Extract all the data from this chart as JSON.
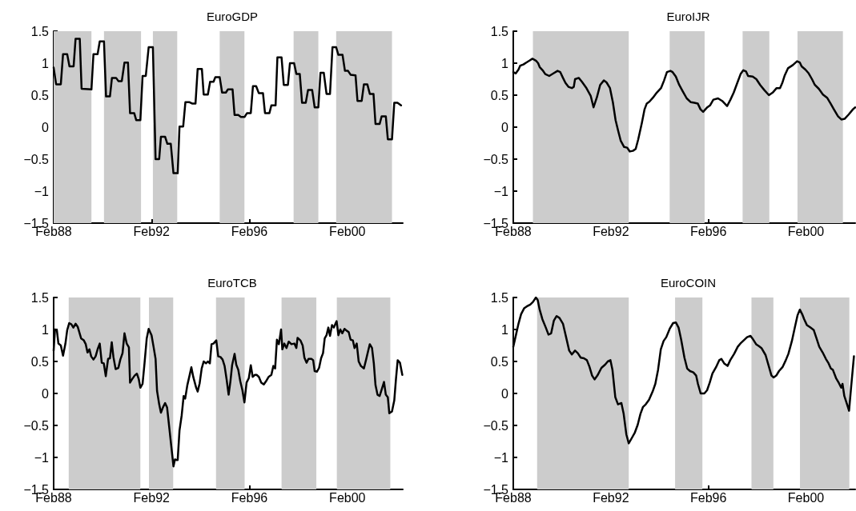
{
  "chart_data": [
    {
      "type": "line",
      "title": "EuroGDP",
      "color": "#000000",
      "grid": false,
      "marker": "none",
      "line_style": "solid",
      "x": [
        "1988-02-01",
        "1988-03-09",
        "1988-05-18",
        "1988-06-20",
        "1988-08-21",
        "1988-09-24",
        "1988-11-25",
        "1988-12-24",
        "1989-02-25",
        "1989-03-24",
        "1989-08-18",
        "1989-09-17",
        "1989-11-18",
        "1989-12-20",
        "1990-02-21",
        "1990-03-24",
        "1990-05-21",
        "1990-06-20",
        "1990-08-21",
        "1990-09-24",
        "1990-11-14",
        "1990-12-24",
        "1991-02-14",
        "1991-03-17",
        "1991-05-18",
        "1991-06-17",
        "1991-08-18",
        "1991-09-20",
        "1991-11-07",
        "1991-12-20",
        "1992-02-21",
        "1992-04-01",
        "1992-05-25",
        "1992-06-20",
        "1992-08-21",
        "1992-09-24",
        "1992-11-14",
        "1992-12-24",
        "1993-02-25",
        "1993-03-24",
        "1993-05-18",
        "1993-06-20",
        "1993-08-21",
        "1993-09-27",
        "1993-11-18",
        "1993-12-20",
        "1994-02-21",
        "1994-03-20",
        "1994-05-21",
        "1994-06-24",
        "1994-08-14",
        "1994-09-09",
        "1994-11-14",
        "1994-12-20",
        "1995-02-14",
        "1995-03-17",
        "1995-05-25",
        "1995-06-24",
        "1995-08-18",
        "1995-09-27",
        "1995-11-21",
        "1995-12-27",
        "1996-02-21",
        "1996-03-24",
        "1996-05-11",
        "1996-06-20",
        "1996-08-21",
        "1996-09-20",
        "1996-11-25",
        "1996-12-24",
        "1997-02-25",
        "1997-03-24",
        "1997-05-25",
        "1997-06-27",
        "1997-08-28",
        "1997-09-27",
        "1997-11-28",
        "1998-01-01",
        "1998-02-21",
        "1998-03-27",
        "1998-05-21",
        "1998-06-24",
        "1998-08-25",
        "1998-10-01",
        "1998-11-25",
        "1998-12-27",
        "1999-02-14",
        "1999-03-27",
        "1999-05-18",
        "1999-06-24",
        "1999-08-18",
        "1999-09-20",
        "1999-11-21",
        "1999-12-27",
        "2000-02-11",
        "2000-03-20",
        "2000-06-02",
        "2000-07-01",
        "2000-09-02",
        "2000-10-05",
        "2000-11-25",
        "2001-01-01",
        "2001-02-25",
        "2001-03-27",
        "2001-05-28",
        "2001-06-27",
        "2001-08-28",
        "2001-09-27",
        "2001-11-28",
        "2002-01-01",
        "2002-02-18",
        "2002-04-12"
      ],
      "values": [
        0.93,
        0.67,
        0.67,
        1.14,
        1.14,
        0.95,
        0.95,
        1.38,
        1.38,
        0.6,
        0.59,
        1.14,
        1.14,
        1.34,
        1.34,
        0.48,
        0.48,
        0.77,
        0.77,
        0.72,
        0.72,
        1.01,
        1.01,
        0.22,
        0.22,
        0.11,
        0.11,
        0.8,
        0.8,
        1.25,
        1.25,
        -0.5,
        -0.5,
        -0.15,
        -0.15,
        -0.26,
        -0.26,
        -0.72,
        -0.72,
        0.01,
        0.01,
        0.39,
        0.39,
        0.37,
        0.37,
        0.91,
        0.91,
        0.51,
        0.51,
        0.71,
        0.71,
        0.78,
        0.78,
        0.54,
        0.54,
        0.59,
        0.59,
        0.19,
        0.19,
        0.16,
        0.16,
        0.22,
        0.22,
        0.64,
        0.64,
        0.53,
        0.53,
        0.22,
        0.22,
        0.34,
        0.34,
        1.09,
        1.09,
        0.66,
        0.66,
        1.0,
        1.0,
        0.83,
        0.83,
        0.38,
        0.38,
        0.58,
        0.58,
        0.31,
        0.31,
        0.85,
        0.85,
        0.52,
        0.52,
        1.25,
        1.25,
        1.13,
        1.13,
        0.88,
        0.88,
        0.82,
        0.81,
        0.41,
        0.41,
        0.67,
        0.67,
        0.52,
        0.52,
        0.05,
        0.05,
        0.17,
        0.17,
        -0.19,
        -0.19,
        0.38,
        0.38,
        0.34
      ],
      "xlim": [
        "1988-02-01",
        "2002-05-08"
      ],
      "xticks": [
        {
          "value": "1988-02",
          "label": "Feb88"
        },
        {
          "value": "1992-02",
          "label": "Feb92"
        },
        {
          "value": "1996-02",
          "label": "Feb96"
        },
        {
          "value": "2000-02",
          "label": "Feb00"
        }
      ],
      "ylim": [
        -1.5,
        1.5
      ],
      "yticks": [
        {
          "value": -1.5,
          "label": "−1.5"
        },
        {
          "value": -1,
          "label": "−1"
        },
        {
          "value": -0.5,
          "label": "−0.5"
        },
        0,
        0.5,
        1,
        1.5
      ],
      "bands": [
        {
          "axis": "x",
          "from": "1988-02-01",
          "to": "1989-08-18",
          "color": "#cccccc"
        },
        {
          "axis": "x",
          "from": "1990-02-21",
          "to": "1991-08-28",
          "color": "#cccccc"
        },
        {
          "axis": "x",
          "from": "1992-02-21",
          "to": "1993-02-18",
          "color": "#cccccc"
        },
        {
          "axis": "x",
          "from": "1994-11-14",
          "to": "1995-11-18",
          "color": "#cccccc"
        },
        {
          "axis": "x",
          "from": "1997-11-21",
          "to": "1998-11-25",
          "color": "#cccccc"
        },
        {
          "axis": "x",
          "from": "1999-08-18",
          "to": "2001-11-28",
          "color": "#cccccc"
        }
      ]
    },
    {
      "type": "line",
      "title": "EuroIJR",
      "color": "#000000",
      "grid": false,
      "marker": "none",
      "line_style": "solid",
      "x": [
        "1988-02-01",
        "1988-03-09",
        "1988-04-19",
        "1988-05-14",
        "1988-07-01",
        "1988-08-14",
        "1988-10-01",
        "1988-11-14",
        "1989-01-05",
        "1989-02-07",
        "1989-03-02",
        "1989-04-15",
        "1989-05-25",
        "1989-07-23",
        "1989-09-24",
        "1989-11-25",
        "1990-01-05",
        "1990-02-14",
        "1990-03-24",
        "1990-05-07",
        "1990-06-27",
        "1990-07-26",
        "1990-08-14",
        "1990-10-08",
        "1990-11-25",
        "1991-01-26",
        "1991-04-05",
        "1991-05-18",
        "1991-07-08",
        "1991-08-25",
        "1991-10-19",
        "1991-11-28",
        "1992-01-19",
        "1992-03-02",
        "1992-04-12",
        "1992-05-21",
        "1992-06-27",
        "1992-08-18",
        "1992-10-01",
        "1992-11-11",
        "1992-12-27",
        "1993-02-07",
        "1993-03-17",
        "1993-05-11",
        "1993-06-20",
        "1993-07-23",
        "1993-09-02",
        "1993-10-23",
        "1993-12-20",
        "1994-02-21",
        "1994-04-08",
        "1994-05-21",
        "1994-07-12",
        "1994-08-14",
        "1994-10-01",
        "1994-11-21",
        "1995-01-12",
        "1995-03-13",
        "1995-05-14",
        "1995-07-05",
        "1995-08-25",
        "1995-10-05",
        "1995-11-14",
        "1996-01-15",
        "1996-02-25",
        "1996-04-15",
        "1996-06-24",
        "1996-08-25",
        "1996-11-07",
        "1996-12-27",
        "1997-02-14",
        "1997-04-08",
        "1997-05-28",
        "1997-07-08",
        "1997-08-18",
        "1997-09-17",
        "1997-11-25",
        "1998-01-19",
        "1998-03-17",
        "1998-05-18",
        "1998-07-26",
        "1998-09-20",
        "1998-11-18",
        "1999-01-08",
        "1999-02-11",
        "1999-03-20",
        "1999-05-07",
        "1999-07-19",
        "1999-09-20",
        "1999-11-01",
        "1999-11-28",
        "2000-01-23",
        "2000-03-13",
        "2000-05-01",
        "2000-06-13",
        "2000-08-11",
        "2000-10-12",
        "2000-12-13",
        "2001-02-03",
        "2001-03-24",
        "2001-05-25",
        "2001-07-15",
        "2001-09-02",
        "2001-11-03",
        "2002-01-05",
        "2002-02-07"
      ],
      "values": [
        0.86,
        0.84,
        0.9,
        0.96,
        0.98,
        1.01,
        1.04,
        1.07,
        1.04,
        1.0,
        0.94,
        0.89,
        0.83,
        0.8,
        0.84,
        0.88,
        0.86,
        0.77,
        0.69,
        0.63,
        0.61,
        0.63,
        0.75,
        0.77,
        0.71,
        0.62,
        0.49,
        0.31,
        0.47,
        0.66,
        0.73,
        0.7,
        0.61,
        0.39,
        0.11,
        -0.06,
        -0.21,
        -0.31,
        -0.32,
        -0.38,
        -0.37,
        -0.34,
        -0.19,
        0.07,
        0.28,
        0.37,
        0.4,
        0.46,
        0.54,
        0.61,
        0.73,
        0.86,
        0.88,
        0.86,
        0.79,
        0.66,
        0.56,
        0.45,
        0.39,
        0.38,
        0.37,
        0.28,
        0.24,
        0.31,
        0.34,
        0.43,
        0.45,
        0.41,
        0.33,
        0.43,
        0.54,
        0.69,
        0.83,
        0.89,
        0.87,
        0.8,
        0.79,
        0.75,
        0.66,
        0.58,
        0.5,
        0.54,
        0.61,
        0.61,
        0.69,
        0.81,
        0.92,
        0.97,
        1.03,
        1.01,
        0.95,
        0.9,
        0.84,
        0.75,
        0.66,
        0.6,
        0.51,
        0.46,
        0.37,
        0.28,
        0.17,
        0.12,
        0.13,
        0.2,
        0.28,
        0.31
      ],
      "xlim": [
        "1988-02-01",
        "2002-02-07"
      ],
      "xticks": [
        {
          "value": "1988-02",
          "label": "Feb88"
        },
        {
          "value": "1992-02",
          "label": "Feb92"
        },
        {
          "value": "1996-02",
          "label": "Feb96"
        },
        {
          "value": "2000-02",
          "label": "Feb00"
        }
      ],
      "ylim": [
        -1.5,
        1.5
      ],
      "yticks": [
        {
          "value": -1.5,
          "label": "−1.5"
        },
        {
          "value": -1,
          "label": "−1"
        },
        {
          "value": -0.5,
          "label": "−0.5"
        },
        0,
        0.5,
        1,
        1.5
      ],
      "bands": [
        {
          "axis": "x",
          "from": "1988-11-21",
          "to": "1992-10-26",
          "color": "#cccccc"
        },
        {
          "axis": "x",
          "from": "1994-07-01",
          "to": "1995-12-06",
          "color": "#cccccc"
        },
        {
          "axis": "x",
          "from": "1997-06-27",
          "to": "1998-08-01",
          "color": "#cccccc"
        },
        {
          "axis": "x",
          "from": "1999-09-27",
          "to": "2001-08-07",
          "color": "#cccccc"
        }
      ]
    },
    {
      "type": "line",
      "title": "EuroTCB",
      "color": "#000000",
      "grid": false,
      "marker": "none",
      "line_style": "solid",
      "x": [
        "1988-02-01",
        "1988-02-21",
        "1988-03-20",
        "1988-04-12",
        "1988-05-18",
        "1988-06-20",
        "1988-07-26",
        "1988-08-21",
        "1988-09-20",
        "1988-10-23",
        "1988-11-21",
        "1988-12-24",
        "1989-01-26",
        "1989-03-17",
        "1989-04-26",
        "1989-05-25",
        "1989-06-20",
        "1989-07-19",
        "1989-08-14",
        "1989-09-17",
        "1989-10-19",
        "1989-11-18",
        "1989-12-20",
        "1990-01-19",
        "1990-02-18",
        "1990-03-20",
        "1990-04-23",
        "1990-05-21",
        "1990-06-17",
        "1990-07-12",
        "1990-08-14",
        "1990-09-24",
        "1990-10-23",
        "1990-11-25",
        "1990-12-24",
        "1991-01-26",
        "1991-02-28",
        "1991-03-17",
        "1991-04-15",
        "1991-05-25",
        "1991-06-27",
        "1991-07-26",
        "1991-08-18",
        "1991-09-20",
        "1991-10-19",
        "1991-11-21",
        "1991-12-20",
        "1992-02-01",
        "1992-03-02",
        "1992-04-01",
        "1992-04-23",
        "1992-05-25",
        "1992-06-20",
        "1992-07-19",
        "1992-08-21",
        "1992-09-20",
        "1992-10-23",
        "1992-11-21",
        "1992-12-24",
        "1993-01-15",
        "1993-02-03",
        "1993-02-25",
        "1993-03-24",
        "1993-04-26",
        "1993-05-25",
        "1993-06-17",
        "1993-07-19",
        "1993-08-21",
        "1993-09-17",
        "1993-10-15",
        "1993-11-28",
        "1993-12-20",
        "1994-01-19",
        "1994-02-18",
        "1994-03-20",
        "1994-04-23",
        "1994-05-21",
        "1994-06-20",
        "1994-07-15",
        "1994-08-14",
        "1994-09-24",
        "1994-10-23",
        "1994-11-25",
        "1994-12-27",
        "1995-01-26",
        "1995-02-25",
        "1995-03-27",
        "1995-04-23",
        "1995-05-18",
        "1995-06-24",
        "1995-07-19",
        "1995-08-18",
        "1995-09-17",
        "1995-10-19",
        "1995-11-18",
        "1995-12-20",
        "1996-01-23",
        "1996-02-21",
        "1996-03-20",
        "1996-04-23",
        "1996-05-18",
        "1996-06-20",
        "1996-07-26",
        "1996-09-02",
        "1996-10-05",
        "1996-11-14",
        "1996-12-24",
        "1997-01-23",
        "1997-02-18",
        "1997-03-17",
        "1997-04-15",
        "1997-05-18",
        "1997-06-06",
        "1997-07-05",
        "1997-08-07",
        "1997-09-09",
        "1997-10-19",
        "1997-12-02",
        "1998-01-01",
        "1998-01-19",
        "1998-03-02",
        "1998-04-05",
        "1998-05-01",
        "1998-06-02",
        "1998-07-01",
        "1998-08-14",
        "1998-09-09",
        "1998-10-01",
        "1998-11-03",
        "1998-12-06",
        "1999-01-05",
        "1999-02-03",
        "1999-02-28",
        "1999-03-27",
        "1999-04-23",
        "1999-05-18",
        "1999-06-17",
        "1999-07-15",
        "1999-08-11",
        "1999-08-25",
        "1999-09-20",
        "1999-10-19",
        "1999-11-18",
        "1999-12-20",
        "2000-01-23",
        "2000-02-21",
        "2000-03-20",
        "2000-04-23",
        "2000-05-18",
        "2000-06-20",
        "2000-07-19",
        "2000-08-21",
        "2000-10-05",
        "2000-11-07",
        "2000-12-06",
        "2001-01-01",
        "2001-02-03",
        "2001-03-02",
        "2001-03-27",
        "2001-04-26",
        "2001-05-28",
        "2001-06-27",
        "2001-08-01",
        "2001-08-28",
        "2001-09-27",
        "2001-10-19",
        "2001-11-28",
        "2002-01-01",
        "2002-01-26",
        "2002-02-21",
        "2002-03-27",
        "2002-05-01"
      ],
      "values": [
        0.67,
        1.0,
        0.99,
        0.78,
        0.75,
        0.59,
        0.78,
        0.99,
        1.1,
        1.08,
        1.03,
        1.09,
        1.04,
        0.86,
        0.83,
        0.77,
        0.64,
        0.69,
        0.58,
        0.53,
        0.58,
        0.69,
        0.78,
        0.48,
        0.47,
        0.27,
        0.54,
        0.55,
        0.8,
        0.57,
        0.38,
        0.4,
        0.53,
        0.63,
        0.94,
        0.78,
        0.72,
        0.17,
        0.22,
        0.28,
        0.31,
        0.22,
        0.09,
        0.15,
        0.47,
        0.86,
        1.01,
        0.91,
        0.73,
        0.54,
        0.04,
        -0.17,
        -0.3,
        -0.22,
        -0.15,
        -0.22,
        -0.54,
        -0.82,
        -1.14,
        -1.03,
        -1.04,
        -1.04,
        -0.58,
        -0.34,
        -0.04,
        -0.08,
        0.13,
        0.28,
        0.41,
        0.26,
        0.09,
        0.03,
        0.16,
        0.39,
        0.5,
        0.47,
        0.5,
        0.47,
        0.77,
        0.78,
        0.83,
        0.58,
        0.57,
        0.53,
        0.43,
        0.22,
        -0.02,
        0.19,
        0.44,
        0.62,
        0.45,
        0.37,
        0.19,
        0.05,
        -0.14,
        0.17,
        0.24,
        0.44,
        0.26,
        0.29,
        0.29,
        0.26,
        0.17,
        0.14,
        0.19,
        0.26,
        0.29,
        0.43,
        0.39,
        0.84,
        0.77,
        1.0,
        0.69,
        0.78,
        0.71,
        0.81,
        0.77,
        0.78,
        0.71,
        0.87,
        0.83,
        0.75,
        0.56,
        0.48,
        0.54,
        0.54,
        0.52,
        0.35,
        0.34,
        0.4,
        0.55,
        0.63,
        0.86,
        0.91,
        1.03,
        0.9,
        1.07,
        1.03,
        1.1,
        1.13,
        0.91,
        1.0,
        0.94,
        1.01,
        0.98,
        0.96,
        0.84,
        0.83,
        0.71,
        0.78,
        0.5,
        0.43,
        0.39,
        0.53,
        0.66,
        0.77,
        0.71,
        0.47,
        0.13,
        -0.02,
        -0.04,
        0.06,
        0.18,
        -0.02,
        -0.06,
        -0.31,
        -0.28,
        -0.11,
        0.22,
        0.52,
        0.48,
        0.29
      ],
      "xlim": [
        "1988-02-01",
        "2002-05-08"
      ],
      "xticks": [
        {
          "value": "1988-02",
          "label": "Feb88"
        },
        {
          "value": "1992-02",
          "label": "Feb92"
        },
        {
          "value": "1996-02",
          "label": "Feb96"
        },
        {
          "value": "2000-02",
          "label": "Feb00"
        }
      ],
      "ylim": [
        -1.5,
        1.5
      ],
      "yticks": [
        {
          "value": -1.5,
          "label": "−1.5"
        },
        {
          "value": -1,
          "label": "−1"
        },
        {
          "value": -0.5,
          "label": "−0.5"
        },
        0,
        0.5,
        1,
        1.5
      ],
      "bands": [
        {
          "axis": "x",
          "from": "1988-09-13",
          "to": "1991-08-18",
          "color": "#cccccc"
        },
        {
          "axis": "x",
          "from": "1991-12-24",
          "to": "1992-12-20",
          "color": "#cccccc"
        },
        {
          "axis": "x",
          "from": "1994-09-20",
          "to": "1995-11-21",
          "color": "#cccccc"
        },
        {
          "axis": "x",
          "from": "1997-05-25",
          "to": "1998-10-26",
          "color": "#cccccc"
        },
        {
          "axis": "x",
          "from": "1999-08-28",
          "to": "2001-11-03",
          "color": "#cccccc"
        }
      ]
    },
    {
      "type": "line",
      "title": "EuroCOIN",
      "color": "#000000",
      "grid": false,
      "marker": "none",
      "line_style": "solid",
      "x": [
        "1988-02-01",
        "1988-03-09",
        "1988-04-19",
        "1988-05-28",
        "1988-07-12",
        "1988-08-21",
        "1988-10-12",
        "1988-11-21",
        "1989-01-05",
        "1989-02-01",
        "1989-03-02",
        "1989-04-12",
        "1989-06-02",
        "1989-07-12",
        "1989-08-21",
        "1989-10-01",
        "1989-11-11",
        "1989-12-24",
        "1990-02-14",
        "1990-03-24",
        "1990-05-18",
        "1990-06-27",
        "1990-08-14",
        "1990-09-24",
        "1990-11-07",
        "1990-12-24",
        "1991-02-07",
        "1991-03-17",
        "1991-04-26",
        "1991-06-02",
        "1991-07-15",
        "1991-09-13",
        "1991-11-07",
        "1991-12-17",
        "1992-01-26",
        "1992-02-25",
        "1992-04-08",
        "1992-05-18",
        "1992-07-08",
        "1992-08-11",
        "1992-09-20",
        "1992-10-26",
        "1992-12-09",
        "1993-01-26",
        "1993-03-09",
        "1993-04-19",
        "1993-05-28",
        "1993-07-08",
        "1993-08-25",
        "1993-10-19",
        "1993-11-28",
        "1994-01-08",
        "1994-02-18",
        "1994-04-01",
        "1994-05-11",
        "1994-07-01",
        "1994-08-21",
        "1994-10-01",
        "1994-11-11",
        "1994-12-20",
        "1995-02-07",
        "1995-03-20",
        "1995-05-01",
        "1995-06-20",
        "1995-08-01",
        "1995-08-28",
        "1995-10-08",
        "1995-12-02",
        "1996-01-12",
        "1996-02-21",
        "1996-04-01",
        "1996-05-25",
        "1996-07-12",
        "1996-08-14",
        "1996-09-24",
        "1996-11-14",
        "1996-12-24",
        "1997-02-21",
        "1997-04-15",
        "1997-06-02",
        "1997-07-23",
        "1997-09-02",
        "1997-10-23",
        "1997-11-21",
        "1998-01-15",
        "1998-02-25",
        "1998-04-05",
        "1998-06-06",
        "1998-07-23",
        "1998-09-02",
        "1998-10-05",
        "1998-11-14",
        "1998-12-24",
        "1999-02-14",
        "1999-04-05",
        "1999-05-14",
        "1999-07-05",
        "1999-08-18",
        "1999-09-27",
        "1999-11-01",
        "1999-12-06",
        "2000-01-05",
        "2000-02-14",
        "2000-04-08",
        "2000-05-28",
        "2000-07-08",
        "2000-08-18",
        "2000-10-08",
        "2000-11-25",
        "2001-01-05",
        "2001-02-07",
        "2001-03-09",
        "2001-04-26",
        "2001-06-09",
        "2001-07-12",
        "2001-08-01",
        "2001-08-28",
        "2001-10-08",
        "2001-11-07",
        "2001-12-09",
        "2002-01-19"
      ],
      "values": [
        0.73,
        0.9,
        1.09,
        1.24,
        1.33,
        1.36,
        1.39,
        1.43,
        1.5,
        1.46,
        1.31,
        1.16,
        1.03,
        0.92,
        0.94,
        1.14,
        1.21,
        1.18,
        1.09,
        0.92,
        0.67,
        0.61,
        0.67,
        0.63,
        0.56,
        0.55,
        0.52,
        0.42,
        0.28,
        0.22,
        0.28,
        0.4,
        0.45,
        0.5,
        0.52,
        0.37,
        -0.06,
        -0.17,
        -0.15,
        -0.32,
        -0.64,
        -0.78,
        -0.7,
        -0.61,
        -0.49,
        -0.32,
        -0.21,
        -0.17,
        -0.1,
        0.03,
        0.15,
        0.37,
        0.69,
        0.82,
        0.88,
        1.01,
        1.1,
        1.11,
        1.03,
        0.84,
        0.56,
        0.39,
        0.35,
        0.33,
        0.28,
        0.15,
        0.0,
        0.0,
        0.05,
        0.17,
        0.31,
        0.41,
        0.52,
        0.54,
        0.47,
        0.43,
        0.52,
        0.62,
        0.73,
        0.79,
        0.84,
        0.88,
        0.9,
        0.86,
        0.77,
        0.74,
        0.71,
        0.6,
        0.43,
        0.28,
        0.25,
        0.28,
        0.35,
        0.41,
        0.52,
        0.62,
        0.82,
        1.03,
        1.22,
        1.31,
        1.24,
        1.16,
        1.07,
        1.03,
        0.99,
        0.86,
        0.73,
        0.64,
        0.54,
        0.47,
        0.39,
        0.37,
        0.24,
        0.16,
        0.09,
        0.15,
        -0.04,
        -0.17,
        -0.27,
        0.11,
        0.58
      ],
      "xlim": [
        "1988-02-01",
        "2002-02-07"
      ],
      "xticks": [
        {
          "value": "1988-02",
          "label": "Feb88"
        },
        {
          "value": "1992-02",
          "label": "Feb92"
        },
        {
          "value": "1996-02",
          "label": "Feb96"
        },
        {
          "value": "2000-02",
          "label": "Feb00"
        }
      ],
      "ylim": [
        -1.5,
        1.5
      ],
      "yticks": [
        {
          "value": -1.5,
          "label": "−1.5"
        },
        {
          "value": -1,
          "label": "−1"
        },
        {
          "value": -0.5,
          "label": "−0.5"
        },
        0,
        0.5,
        1,
        1.5
      ],
      "bands": [
        {
          "axis": "x",
          "from": "1989-01-23",
          "to": "1992-10-26",
          "color": "#cccccc"
        },
        {
          "axis": "x",
          "from": "1994-09-20",
          "to": "1995-11-03",
          "color": "#cccccc"
        },
        {
          "axis": "x",
          "from": "1997-11-07",
          "to": "1998-10-01",
          "color": "#cccccc"
        },
        {
          "axis": "x",
          "from": "1999-11-03",
          "to": "2001-11-11",
          "color": "#cccccc"
        }
      ]
    }
  ]
}
